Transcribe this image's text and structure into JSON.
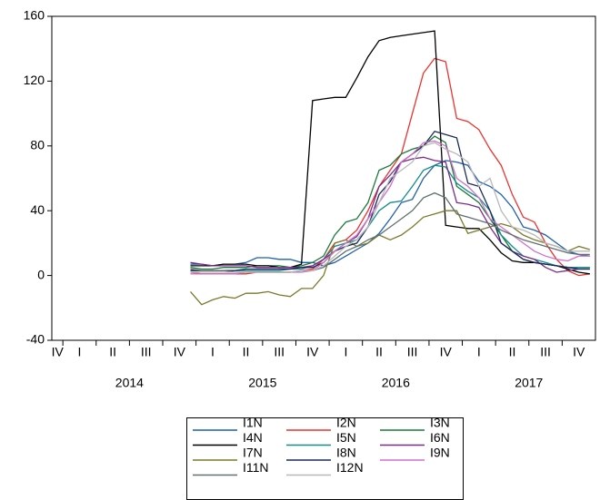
{
  "chart_data": {
    "type": "line",
    "x": [
      2014.958,
      2015.042,
      2015.125,
      2015.208,
      2015.292,
      2015.375,
      2015.458,
      2015.542,
      2015.625,
      2015.708,
      2015.792,
      2015.875,
      2015.958,
      2016.042,
      2016.125,
      2016.208,
      2016.292,
      2016.375,
      2016.458,
      2016.542,
      2016.625,
      2016.708,
      2016.792,
      2016.875,
      2016.958,
      2017.042,
      2017.125,
      2017.208,
      2017.292,
      2017.375,
      2017.458,
      2017.542,
      2017.625,
      2017.708,
      2017.792,
      2017.875,
      2017.958
    ],
    "xlim": [
      2013.917,
      2018.0
    ],
    "xticks": [
      {
        "value": 2013.96,
        "label": "IV"
      },
      {
        "value": 2014.125,
        "label": "I"
      },
      {
        "value": 2014.375,
        "label": "II"
      },
      {
        "value": 2014.625,
        "label": "III"
      },
      {
        "value": 2014.875,
        "label": "IV"
      },
      {
        "value": 2015.125,
        "label": "I"
      },
      {
        "value": 2015.375,
        "label": "II"
      },
      {
        "value": 2015.625,
        "label": "III"
      },
      {
        "value": 2015.875,
        "label": "IV"
      },
      {
        "value": 2016.125,
        "label": "I"
      },
      {
        "value": 2016.375,
        "label": "II"
      },
      {
        "value": 2016.625,
        "label": "III"
      },
      {
        "value": 2016.875,
        "label": "IV"
      },
      {
        "value": 2017.125,
        "label": "I"
      },
      {
        "value": 2017.375,
        "label": "II"
      },
      {
        "value": 2017.625,
        "label": "III"
      },
      {
        "value": 2017.875,
        "label": "IV"
      }
    ],
    "xtick_marks": [
      2014.0,
      2014.25,
      2014.5,
      2014.75,
      2015.0,
      2015.25,
      2015.5,
      2015.75,
      2016.0,
      2016.25,
      2016.5,
      2016.75,
      2017.0,
      2017.25,
      2017.5,
      2017.75
    ],
    "xyear_labels": [
      {
        "value": 2014.5,
        "label": "2014"
      },
      {
        "value": 2015.5,
        "label": "2015"
      },
      {
        "value": 2016.5,
        "label": "2016"
      },
      {
        "value": 2017.5,
        "label": "2017"
      }
    ],
    "ylim": [
      -40,
      160
    ],
    "yticks": [
      -40,
      0,
      40,
      80,
      120,
      160
    ],
    "grid": false,
    "legend": "bottom",
    "series": [
      {
        "name": "I1N",
        "color": "#1f5fad",
        "values": [
          7,
          7,
          6,
          7,
          7,
          8,
          11,
          11,
          10,
          10,
          8,
          8,
          6,
          8,
          12,
          16,
          20,
          26,
          35,
          45,
          47,
          60,
          68,
          71,
          70,
          68,
          58,
          55,
          50,
          42,
          30,
          28,
          25,
          20,
          15,
          13,
          12
        ]
      },
      {
        "name": "I2N",
        "color": "#e8332f",
        "values": [
          2,
          1,
          1,
          1,
          1,
          1,
          2,
          2,
          2,
          2,
          3,
          4,
          10,
          20,
          22,
          28,
          40,
          55,
          65,
          75,
          100,
          125,
          134,
          132,
          97,
          95,
          90,
          78,
          68,
          50,
          36,
          33,
          20,
          10,
          3,
          0,
          1
        ]
      },
      {
        "name": "I3N",
        "color": "#1a7a3a",
        "values": [
          5,
          4,
          4,
          5,
          5,
          5,
          6,
          6,
          6,
          5,
          6,
          8,
          12,
          25,
          33,
          35,
          45,
          65,
          68,
          75,
          78,
          80,
          86,
          82,
          55,
          50,
          45,
          35,
          25,
          15,
          10,
          8,
          7,
          6,
          5,
          5,
          5
        ]
      },
      {
        "name": "I4N",
        "color": "#000000",
        "values": [
          6,
          6,
          6,
          7,
          7,
          7,
          6,
          6,
          5,
          5,
          7,
          108,
          109,
          110,
          110,
          122,
          135,
          145,
          147,
          148,
          149,
          150,
          151,
          31,
          30,
          29,
          29,
          22,
          14,
          9,
          8,
          8,
          7,
          6,
          4,
          2,
          1
        ]
      },
      {
        "name": "I5N",
        "color": "#158c8c",
        "values": [
          3,
          3,
          3,
          3,
          3,
          3,
          3,
          3,
          3,
          4,
          4,
          6,
          10,
          18,
          20,
          22,
          30,
          40,
          45,
          46,
          55,
          65,
          68,
          67,
          57,
          52,
          48,
          40,
          25,
          18,
          12,
          10,
          8,
          6,
          5,
          5,
          5
        ]
      },
      {
        "name": "I6N",
        "color": "#7b2a8a",
        "values": [
          8,
          7,
          6,
          6,
          6,
          6,
          5,
          5,
          5,
          5,
          5,
          6,
          10,
          15,
          20,
          24,
          35,
          55,
          62,
          70,
          72,
          73,
          71,
          70,
          45,
          44,
          42,
          30,
          20,
          15,
          12,
          10,
          5,
          2,
          3,
          4,
          4
        ]
      },
      {
        "name": "I7N",
        "color": "#7a7a2a",
        "values": [
          -10,
          -18,
          -15,
          -13,
          -14,
          -11,
          -11,
          -10,
          -12,
          -13,
          -8,
          -8,
          0,
          20,
          22,
          18,
          20,
          25,
          22,
          25,
          30,
          36,
          38,
          40,
          40,
          26,
          28,
          30,
          32,
          30,
          25,
          22,
          20,
          18,
          15,
          18,
          16
        ]
      },
      {
        "name": "I8N",
        "color": "#1a2a5a",
        "values": [
          3,
          3,
          3,
          3,
          3,
          4,
          4,
          4,
          4,
          4,
          5,
          5,
          8,
          15,
          18,
          20,
          30,
          50,
          58,
          70,
          75,
          80,
          89,
          87,
          85,
          57,
          55,
          40,
          20,
          15,
          10,
          8,
          7,
          6,
          5,
          4,
          4
        ]
      },
      {
        "name": "I9N",
        "color": "#d070c8",
        "values": [
          1,
          1,
          1,
          1,
          1,
          2,
          2,
          2,
          2,
          2,
          2,
          3,
          8,
          15,
          20,
          25,
          35,
          45,
          55,
          70,
          75,
          82,
          83,
          80,
          60,
          55,
          48,
          35,
          30,
          25,
          20,
          15,
          12,
          10,
          9,
          12,
          12
        ]
      },
      {
        "name": "I11N",
        "color": "#607070",
        "values": [
          4,
          3,
          3,
          3,
          2,
          2,
          2,
          2,
          2,
          2,
          3,
          3,
          5,
          10,
          15,
          18,
          22,
          25,
          30,
          35,
          40,
          48,
          51,
          48,
          38,
          36,
          34,
          32,
          28,
          25,
          22,
          20,
          18,
          16,
          14,
          13,
          13
        ]
      },
      {
        "name": "I12N",
        "color": "#b8b8b8",
        "values": [
          2,
          2,
          2,
          2,
          2,
          2,
          2,
          2,
          2,
          2,
          3,
          3,
          6,
          12,
          18,
          22,
          30,
          45,
          60,
          65,
          70,
          80,
          82,
          78,
          75,
          70,
          55,
          60,
          40,
          30,
          28,
          25,
          20,
          18,
          15,
          15,
          15
        ]
      }
    ]
  }
}
